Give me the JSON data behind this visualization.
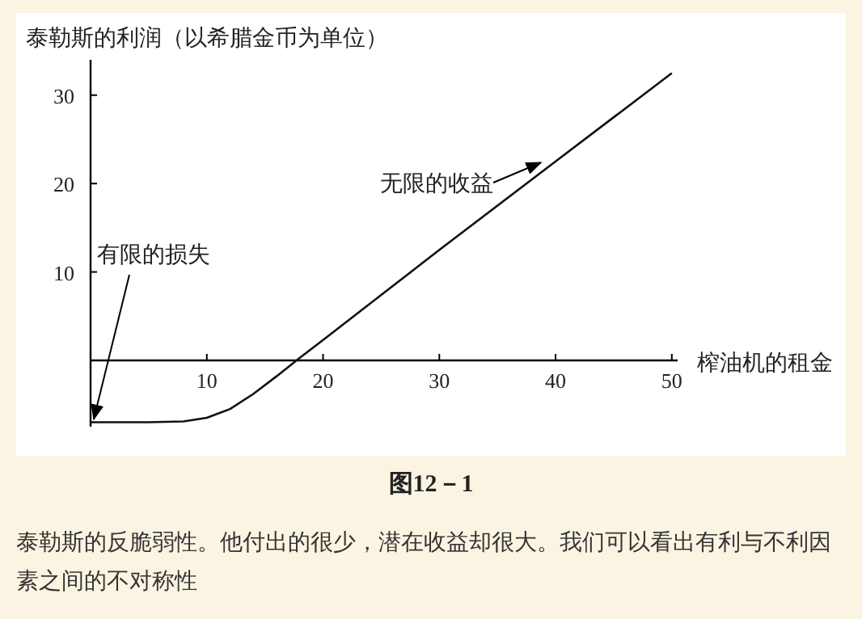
{
  "chart_data": {
    "type": "line",
    "ylabel": "泰勒斯的利润（以希腊金币为单位）",
    "xlabel": "榨油机的租金",
    "x": [
      0,
      5,
      8,
      10,
      12,
      14,
      16,
      18,
      20,
      25,
      30,
      40,
      50
    ],
    "series": [
      {
        "color": "#111111",
        "values": [
          -7,
          -7,
          -6.9,
          -6.5,
          -5.5,
          -3.8,
          -1.8,
          0.3,
          2.3,
          7.4,
          12.5,
          22.5,
          32.5
        ]
      }
    ],
    "xlim": [
      0,
      50.5
    ],
    "ylim": [
      -7.5,
      34
    ],
    "xticks": [
      10,
      20,
      30,
      40,
      50
    ],
    "yticks": [
      10,
      20,
      30
    ],
    "marker": "none",
    "line_style": "solid",
    "annotations": [
      {
        "text": "无限的收益",
        "x": 39,
        "y": 22
      },
      {
        "text": "有限的损失",
        "x": 0,
        "y": -7
      },
      "图12－1",
      "泰勒斯的反脆弱性。他付出的很少，潜在收益却很大。我们可以看出有利与不利因素之间的不对称性"
    ]
  }
}
